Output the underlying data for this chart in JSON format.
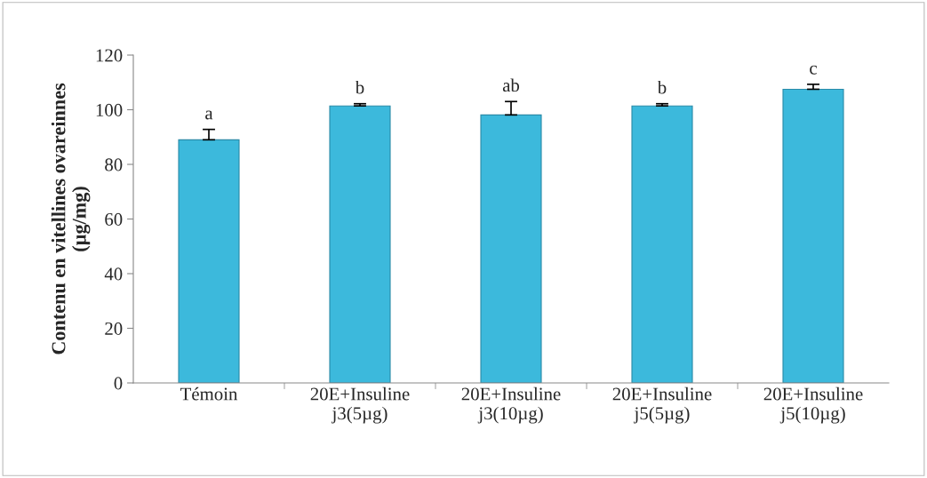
{
  "chart_data": {
    "type": "bar",
    "ylabel": "Contenu en vitellines ovareinnes\n(µg/mg)",
    "categories": [
      "Témoin",
      "20E+Insuline\nj3(5µg)",
      "20E+Insuline\nj3(10µg)",
      "20E+Insuline\nj5(5µg)",
      "20E+Insuline\nj5(10µg)"
    ],
    "values": [
      89,
      101.4,
      98.1,
      101.4,
      107.5
    ],
    "errors": [
      3.8,
      0.8,
      4.9,
      0.8,
      1.8
    ],
    "color": "#3cb9dc",
    "ylim": [
      0,
      120
    ],
    "yticks": [
      0,
      20,
      40,
      60,
      80,
      100,
      120
    ],
    "grid": false,
    "legend": false,
    "annotations": [
      {
        "text": "a",
        "x": "Témoin",
        "y": 92.8
      },
      {
        "text": "b",
        "x": "20E+Insuline\nj3(5µg)",
        "y": 102.2
      },
      {
        "text": "ab",
        "x": "20E+Insuline\nj3(10µg)",
        "y": 103
      },
      {
        "text": "b",
        "x": "20E+Insuline\nj5(5µg)",
        "y": 102.2
      },
      {
        "text": "c",
        "x": "20E+Insuline\nj5(10µg)",
        "y": 109.3
      }
    ]
  }
}
